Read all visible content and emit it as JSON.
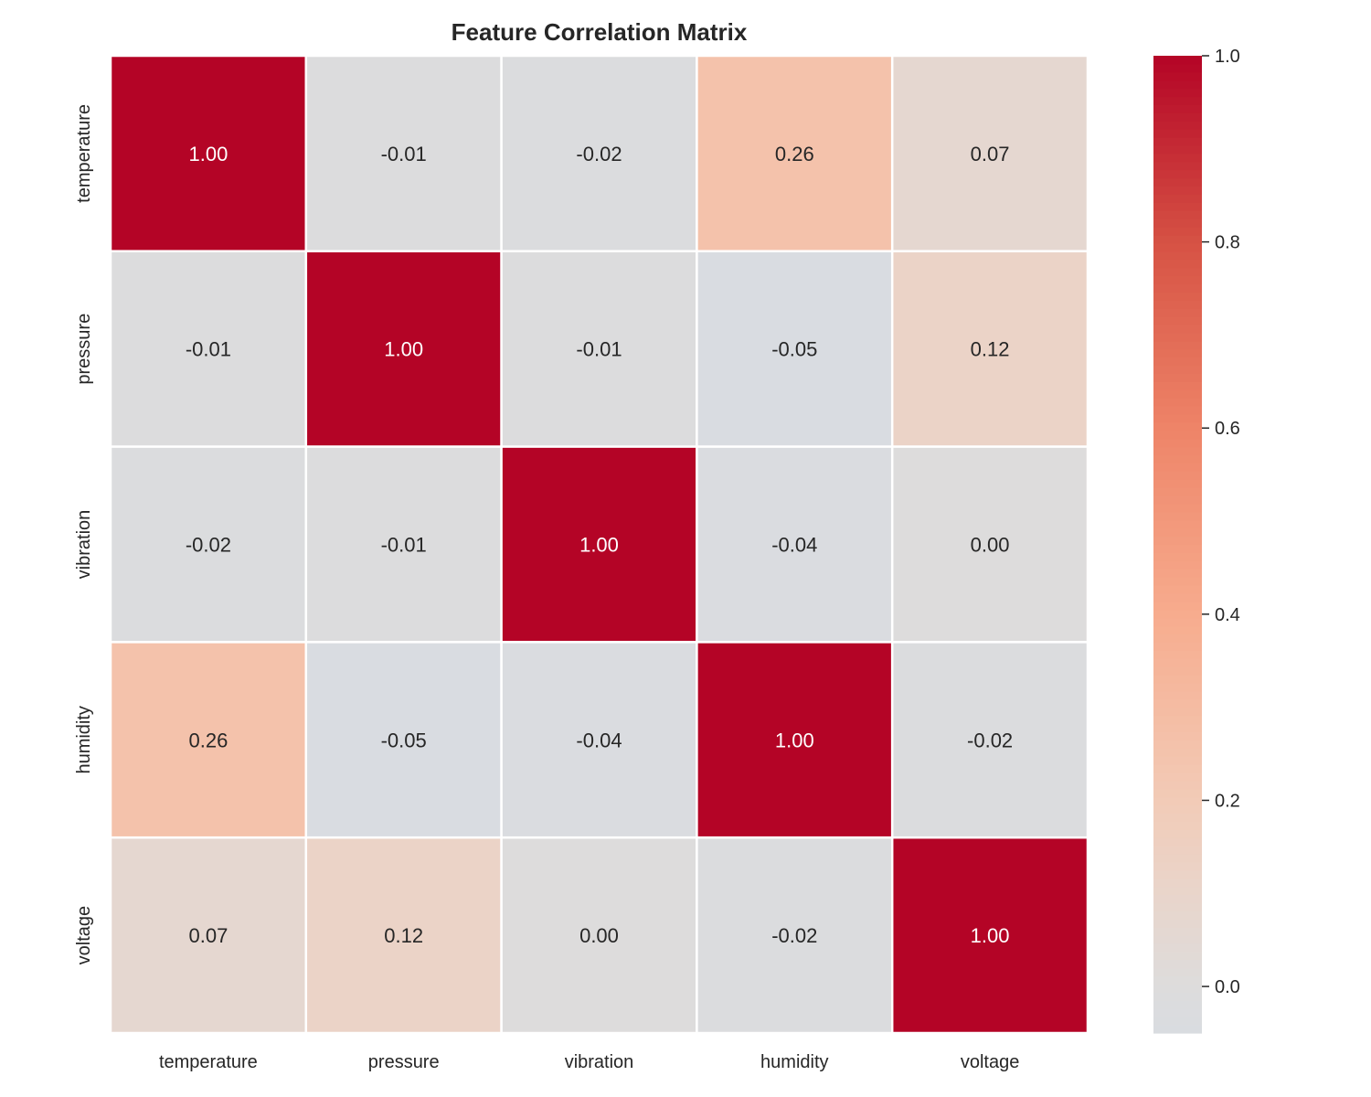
{
  "chart_data": {
    "type": "heatmap",
    "title": "Feature Correlation Matrix",
    "xlabel": "",
    "ylabel": "",
    "x_labels": [
      "temperature",
      "pressure",
      "vibration",
      "humidity",
      "voltage"
    ],
    "y_labels": [
      "temperature",
      "pressure",
      "vibration",
      "humidity",
      "voltage"
    ],
    "values": [
      [
        1.0,
        -0.01,
        -0.02,
        0.26,
        0.07
      ],
      [
        -0.01,
        1.0,
        -0.01,
        -0.05,
        0.12
      ],
      [
        -0.02,
        -0.01,
        1.0,
        -0.04,
        0.0
      ],
      [
        0.26,
        -0.05,
        -0.04,
        1.0,
        -0.02
      ],
      [
        0.07,
        0.12,
        0.0,
        -0.02,
        1.0
      ]
    ],
    "annotations": [
      [
        "1.00",
        "-0.01",
        "-0.02",
        "0.26",
        "0.07"
      ],
      [
        "-0.01",
        "1.00",
        "-0.01",
        "-0.05",
        "0.12"
      ],
      [
        "-0.02",
        "-0.01",
        "1.00",
        "-0.04",
        "0.00"
      ],
      [
        "0.26",
        "-0.05",
        "-0.04",
        "1.00",
        "-0.02"
      ],
      [
        "0.07",
        "0.12",
        "0.00",
        "-0.02",
        "1.00"
      ]
    ],
    "colormap": "coolwarm",
    "center": 0,
    "vrange": [
      -0.05,
      1.0
    ],
    "colorbar": {
      "ticks": [
        0.0,
        0.2,
        0.4,
        0.6,
        0.8,
        1.0
      ],
      "tick_labels": [
        "0.0",
        "0.2",
        "0.4",
        "0.6",
        "0.8",
        "1.0"
      ],
      "placement": "right"
    }
  }
}
